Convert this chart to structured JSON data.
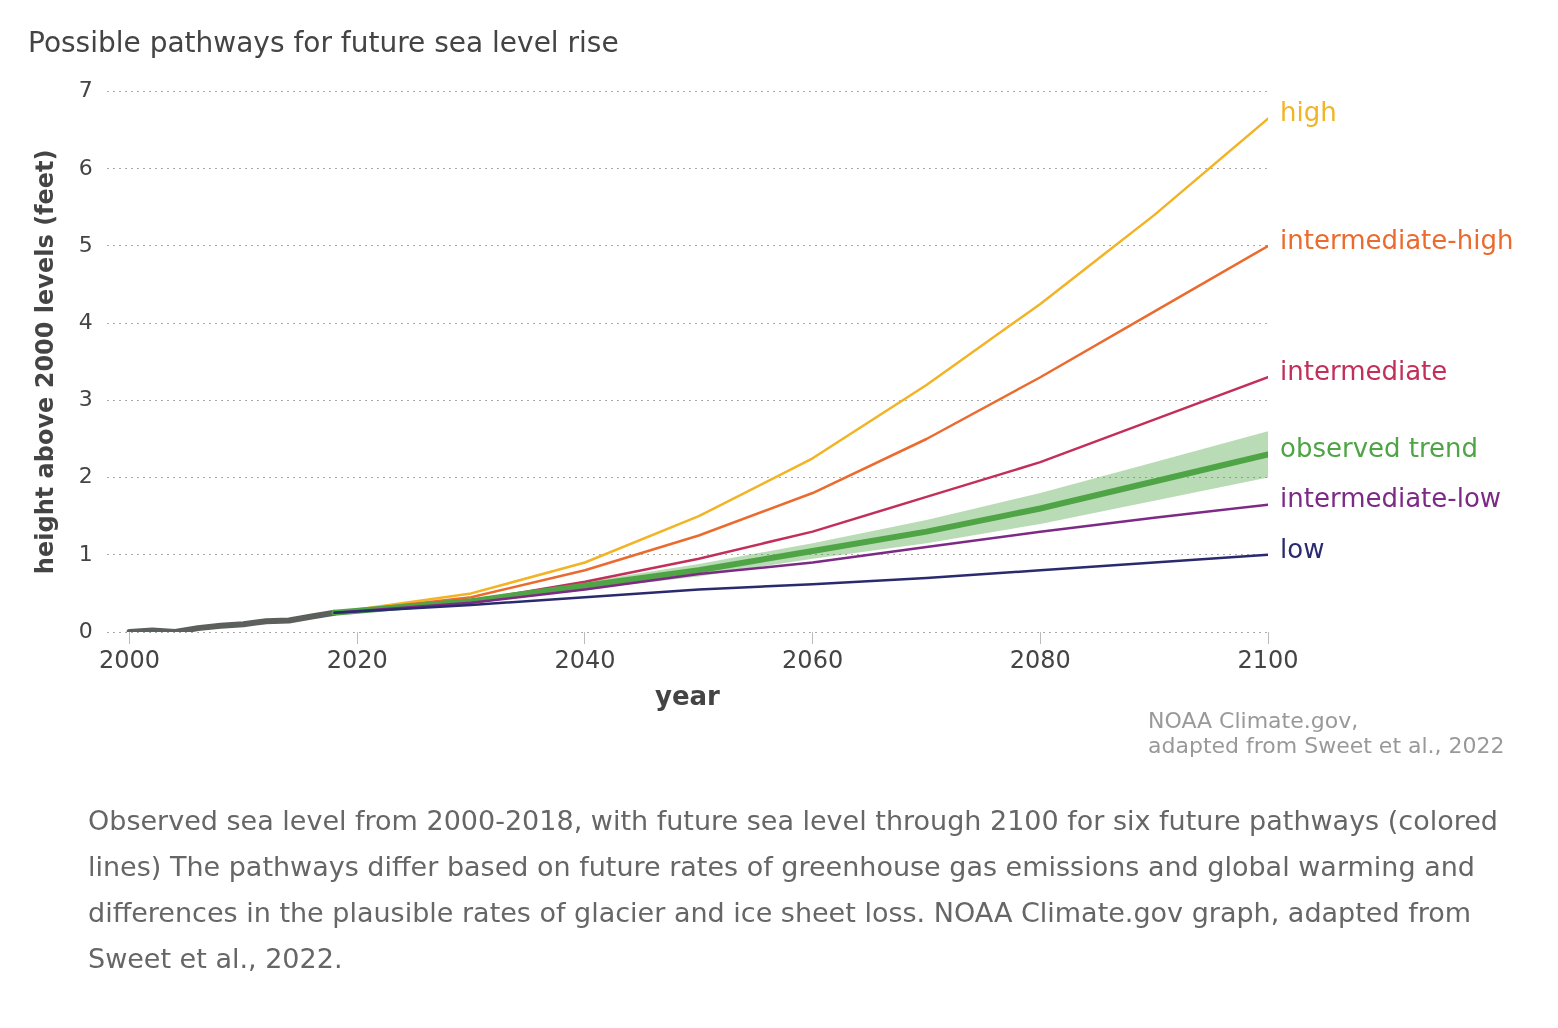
{
  "chart_data": {
    "type": "line",
    "title": "Possible pathways for future sea level rise",
    "xlabel": "year",
    "ylabel": "height above 2000 levels (feet)",
    "xlim": [
      1998,
      2100
    ],
    "xticks": [
      2000,
      2020,
      2040,
      2060,
      2080,
      2100
    ],
    "ylim": [
      0,
      7
    ],
    "yticks": [
      0,
      1,
      2,
      3,
      4,
      5,
      6,
      7
    ],
    "grid": "y",
    "legend": false,
    "marker": "none",
    "series": [
      {
        "color": "#5c605c",
        "x": [
          2000,
          2002,
          2004,
          2006,
          2008,
          2010,
          2012,
          2014,
          2016,
          2018
        ],
        "values": [
          0,
          0.02,
          0,
          0.05,
          0.08,
          0.1,
          0.14,
          0.15,
          0.2,
          0.25
        ]
      },
      {
        "name": "high",
        "color": "#f2b324",
        "x": [
          2018,
          2030,
          2040,
          2050,
          2060,
          2070,
          2080,
          2090,
          2100
        ],
        "values": [
          0.25,
          0.5,
          0.9,
          1.5,
          2.25,
          3.2,
          4.25,
          5.4,
          6.65
        ]
      },
      {
        "name": "intermediate-high",
        "color": "#ea6b2d",
        "x": [
          2018,
          2030,
          2040,
          2050,
          2060,
          2070,
          2080,
          2090,
          2100
        ],
        "values": [
          0.25,
          0.45,
          0.8,
          1.25,
          1.8,
          2.5,
          3.3,
          4.15,
          5
        ]
      },
      {
        "name": "intermediate",
        "color": "#c2305a",
        "x": [
          2018,
          2030,
          2040,
          2050,
          2060,
          2070,
          2080,
          2090,
          2100
        ],
        "values": [
          0.25,
          0.4,
          0.65,
          0.95,
          1.3,
          1.75,
          2.2,
          2.75,
          3.3
        ]
      },
      {
        "name": "observed trend",
        "color": "#4fa446",
        "x": [
          2018,
          2030,
          2040,
          2050,
          2060,
          2070,
          2080,
          2090,
          2100
        ],
        "values": [
          0.25,
          0.4,
          0.6,
          0.8,
          1.05,
          1.3,
          1.6,
          1.95,
          2.3
        ],
        "lower": [
          0.25,
          0.38,
          0.55,
          0.72,
          0.95,
          1.15,
          1.4,
          1.7,
          2
        ],
        "upper": [
          0.25,
          0.42,
          0.65,
          0.88,
          1.15,
          1.45,
          1.8,
          2.2,
          2.6
        ]
      },
      {
        "name": "intermediate-low",
        "color": "#7d2a86",
        "x": [
          2018,
          2030,
          2040,
          2050,
          2060,
          2070,
          2080,
          2090,
          2100
        ],
        "values": [
          0.25,
          0.38,
          0.55,
          0.75,
          0.9,
          1.1,
          1.3,
          1.48,
          1.65
        ]
      },
      {
        "name": "low",
        "color": "#2a2a6e",
        "x": [
          2018,
          2030,
          2040,
          2050,
          2060,
          2070,
          2080,
          2090,
          2100
        ],
        "values": [
          0.25,
          0.35,
          0.45,
          0.55,
          0.62,
          0.7,
          0.8,
          0.9,
          1
        ]
      }
    ],
    "annotations": [
      "NOAA Climate.gov,\nadapted from Sweet et al., 2022",
      "Observed sea level from 2000-2018, with future sea level through 2100 for six future pathways (colored lines)  The pathways differ based on future rates of greenhouse gas emissions and global warming and differences in the plausible rates of glacier and ice sheet loss. NOAA Climate.gov graph, adapted from Sweet et al., 2022."
    ]
  }
}
